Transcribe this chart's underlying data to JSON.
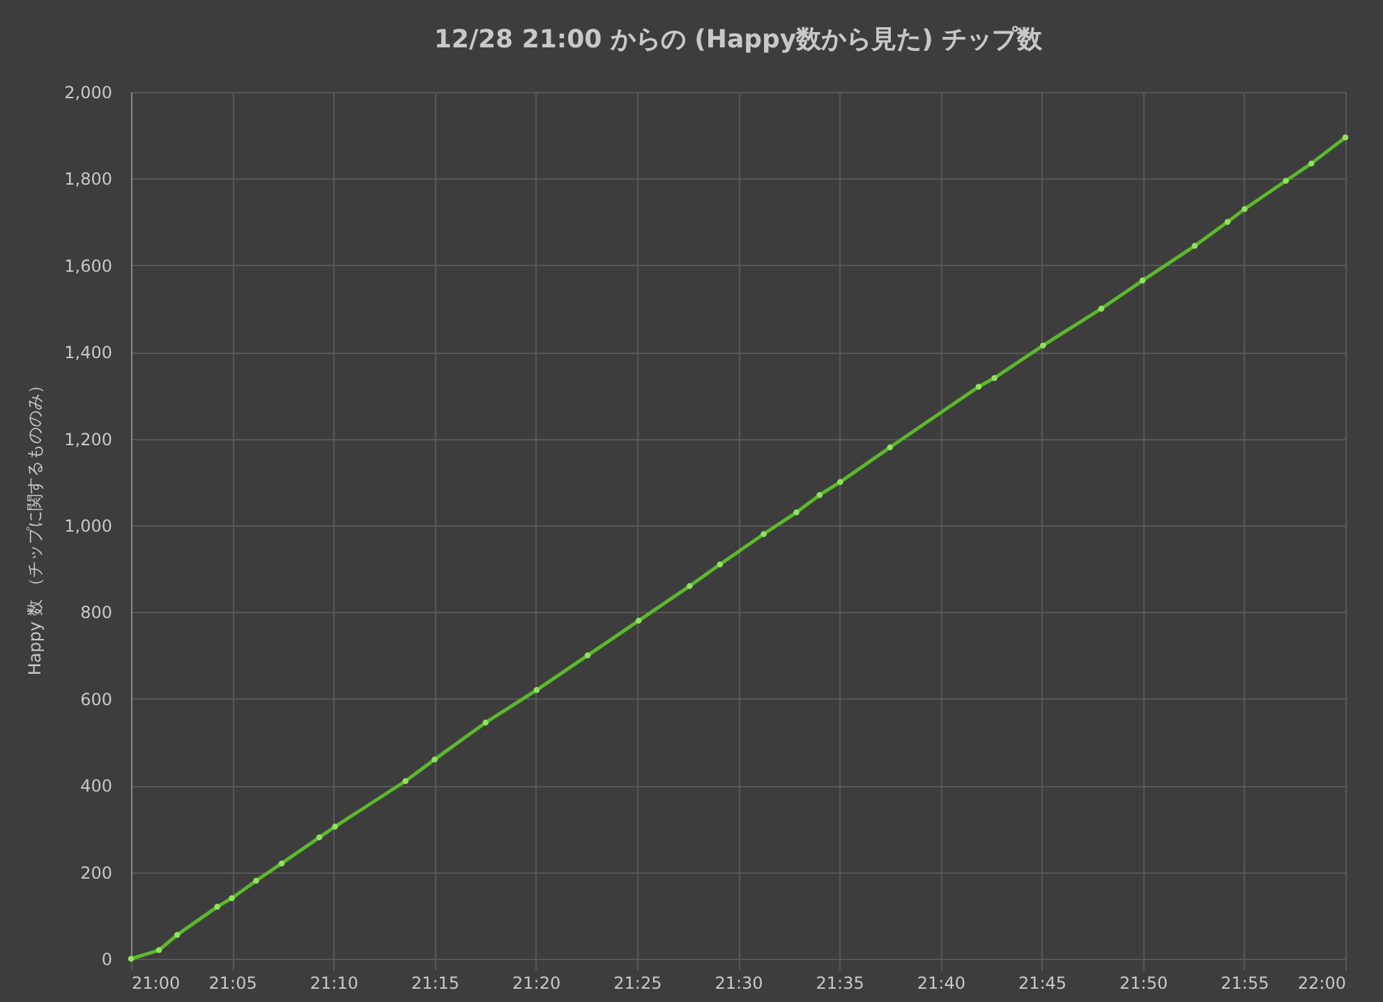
{
  "chart_data": {
    "type": "line",
    "title": "12/28 21:00 からの (Happy数から見た) チップ数",
    "ylabel": "Happy 数 （チップに関するもののみ）",
    "x": [
      21.0,
      21.023,
      21.038,
      21.071,
      21.083,
      21.103,
      21.124,
      21.155,
      21.168,
      21.226,
      21.25,
      21.292,
      21.334,
      21.376,
      21.418,
      21.46,
      21.485,
      21.521,
      21.548,
      21.567,
      21.584,
      21.625,
      21.698,
      21.711,
      21.751,
      21.799,
      21.833,
      21.876,
      21.903,
      21.917,
      21.951,
      21.972,
      22.0
    ],
    "series": [
      {
        "color": "#5cb82c",
        "values": [
          0,
          20,
          55,
          120,
          140,
          180,
          220,
          280,
          305,
          410,
          460,
          545,
          620,
          700,
          780,
          860,
          910,
          980,
          1030,
          1070,
          1100,
          1180,
          1320,
          1340,
          1415,
          1500,
          1565,
          1645,
          1700,
          1730,
          1795,
          1835,
          1895
        ]
      }
    ],
    "xlim": [
      21,
      22
    ],
    "xticks": [
      {
        "value": 21,
        "label": "21:00"
      },
      {
        "value": 21.0833,
        "label": "21:05"
      },
      {
        "value": 21.1667,
        "label": "21:10"
      },
      {
        "value": 21.25,
        "label": "21:15"
      },
      {
        "value": 21.3333,
        "label": "21:20"
      },
      {
        "value": 21.4167,
        "label": "21:25"
      },
      {
        "value": 21.5,
        "label": "21:30"
      },
      {
        "value": 21.5833,
        "label": "21:35"
      },
      {
        "value": 21.6667,
        "label": "21:40"
      },
      {
        "value": 21.75,
        "label": "21:45"
      },
      {
        "value": 21.8333,
        "label": "21:50"
      },
      {
        "value": 21.9167,
        "label": "21:55"
      },
      {
        "value": 22,
        "label": "22:00"
      }
    ],
    "ylim": [
      0,
      2000
    ],
    "yticks": [
      0,
      200,
      400,
      600,
      800,
      {
        "value": 1000,
        "label": "1,000"
      },
      {
        "value": 1200,
        "label": "1,200"
      },
      {
        "value": 1400,
        "label": "1,400"
      },
      {
        "value": 1600,
        "label": "1,600"
      },
      {
        "value": 1800,
        "label": "1,800"
      },
      {
        "value": 2000,
        "label": "2,000"
      }
    ],
    "grid": true,
    "marker": "circle",
    "line_style": "solid"
  }
}
